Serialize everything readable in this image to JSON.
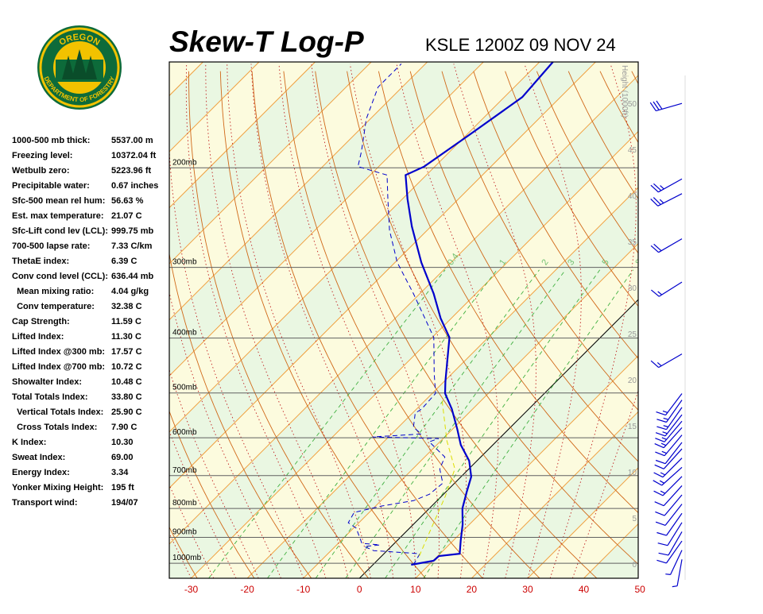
{
  "logo": {
    "top": "OREGON",
    "bottom": "DEPARTMENT OF FORESTRY"
  },
  "indices": [
    [
      "1000-500 mb thick:",
      "5537.00 m"
    ],
    [
      "Freezing level:",
      "10372.04 ft"
    ],
    [
      "Wetbulb zero:",
      "5223.96 ft"
    ],
    [
      "Precipitable water:",
      "0.67 inches"
    ],
    [
      "Sfc-500 mean rel hum:",
      "56.63 %"
    ],
    [
      "Est. max temperature:",
      "21.07 C"
    ],
    [
      "Sfc-Lift cond lev (LCL):",
      "999.75 mb"
    ],
    [
      "700-500 lapse rate:",
      "7.33 C/km"
    ],
    [
      "ThetaE index:",
      "6.39 C"
    ],
    [
      "Conv cond level (CCL):",
      "636.44 mb"
    ],
    [
      "  Mean mixing ratio:",
      "4.04 g/kg"
    ],
    [
      "  Conv temperature:",
      "32.38 C"
    ],
    [
      "Cap Strength:",
      "11.59 C"
    ],
    [
      "Lifted Index:",
      "11.30 C"
    ],
    [
      "Lifted Index @300 mb:",
      "17.57 C"
    ],
    [
      "Lifted Index @700 mb:",
      "10.72 C"
    ],
    [
      "Showalter Index:",
      "10.48 C"
    ],
    [
      "Total Totals Index:",
      "33.80 C"
    ],
    [
      "  Vertical Totals Index:",
      "25.90 C"
    ],
    [
      "  Cross Totals Index:",
      "7.90 C"
    ],
    [
      "K Index:",
      "10.30"
    ],
    [
      "Sweat Index:",
      "69.00"
    ],
    [
      "Energy Index:",
      "3.34"
    ],
    [
      "Yonker Mixing Height:",
      "195 ft"
    ],
    [
      "Transport wind:",
      "194/07"
    ]
  ],
  "chart_data": {
    "type": "skewt",
    "title": "Skew-T Log-P",
    "subtitle": "KSLE 1200Z 09 NOV 24",
    "xlim": [
      -33.9,
      49.7
    ],
    "xticks": [
      -30,
      -20,
      -10,
      0,
      10,
      20,
      30,
      40,
      50
    ],
    "ylim": [
      1063,
      130
    ],
    "log_y": true,
    "yticks": [
      {
        "value": 1000,
        "label": "1000mb"
      },
      {
        "value": 900,
        "label": "900mb"
      },
      {
        "value": 800,
        "label": "800mb"
      },
      {
        "value": 700,
        "label": "700mb"
      },
      {
        "value": 600,
        "label": "600mb"
      },
      {
        "value": 500,
        "label": "500mb"
      },
      {
        "value": 400,
        "label": "400mb"
      },
      {
        "value": 300,
        "label": "300mb"
      },
      {
        "value": 200,
        "label": "200mb"
      }
    ],
    "y2label": "Height (1000ft)",
    "y2lim": [
      -1.55,
      54.5
    ],
    "y2ticks": [
      0,
      5,
      10,
      15,
      20,
      25,
      30,
      35,
      40,
      45,
      50
    ],
    "mixing_ratios": [
      0.4,
      1,
      2,
      3,
      5,
      8
    ],
    "series": [
      {
        "color": "#0000cc",
        "dash": false,
        "pressure": [
          1006,
          990,
          971,
          962,
          911,
          854,
          800,
          750,
          703,
          659,
          618,
          579,
          534,
          501,
          477,
          399,
          369,
          334,
          294,
          254,
          227,
          206,
          199,
          175,
          150,
          130
        ],
        "values": [
          6.8,
          10.1,
          10.2,
          13.5,
          11.3,
          8.8,
          5.9,
          3.8,
          1.8,
          -1.4,
          -5.7,
          -9.2,
          -13.7,
          -17.7,
          -19.8,
          -26.9,
          -31.9,
          -37.5,
          -45.3,
          -53.4,
          -59.1,
          -63.7,
          -61.9,
          -59.5,
          -56.8,
          -57.6
        ]
      },
      {
        "color": "#0000cc",
        "dash": true,
        "pressure": [
          1006,
          962,
          950,
          934,
          928,
          922,
          867,
          848,
          813,
          792,
          775,
          755,
          722,
          681,
          649,
          610,
          602,
          598,
          591,
          575,
          543,
          534,
          501,
          462,
          399,
          369,
          334,
          294,
          258,
          227,
          206,
          199,
          187,
          164,
          144,
          131
        ],
        "values": [
          7.2,
          6.4,
          -2.4,
          -4.8,
          -2.3,
          -5.8,
          -9.5,
          -11.9,
          -12.7,
          -8.9,
          -4.2,
          -2.5,
          -2.1,
          -5.2,
          -6.4,
          -11.9,
          -10.8,
          -22.9,
          -14.7,
          -17.3,
          -19.5,
          -19.1,
          -19.4,
          -23.2,
          -29.7,
          -34.7,
          -41.1,
          -49.6,
          -56.7,
          -62.6,
          -67.0,
          -73.7,
          -75.8,
          -80.7,
          -84.3,
          -84.3
        ]
      },
      {
        "color": "#dddd00",
        "dash": true,
        "pressure": [
          971,
          854,
          762,
          681,
          608,
          509
        ],
        "values": [
          6.7,
          3.5,
          0.7,
          -2.5,
          -8.9,
          -17.6
        ]
      }
    ],
    "winds": {
      "height": [
        50,
        41.8,
        40.2,
        35.3,
        30.6,
        22.8,
        18.5,
        17.8,
        17,
        16.2,
        15.5,
        14.8,
        14,
        13.2,
        12.5,
        11.5,
        10.5,
        9.5,
        8.5,
        7.5,
        6.5,
        5.5,
        4.5,
        3.5,
        2.5,
        1.5,
        0.5
      ],
      "direction": [
        254,
        241,
        243,
        240,
        238,
        240,
        217,
        215,
        215,
        218,
        220,
        222,
        220,
        218,
        222,
        225,
        228,
        225,
        222,
        220,
        218,
        215,
        212,
        210,
        215,
        205,
        190
      ],
      "speed": [
        30,
        25,
        25,
        20,
        15,
        15,
        15,
        15,
        15,
        15,
        15,
        15,
        15,
        10,
        10,
        15,
        15,
        15,
        10,
        10,
        10,
        10,
        10,
        10,
        10,
        5,
        5
      ]
    }
  }
}
